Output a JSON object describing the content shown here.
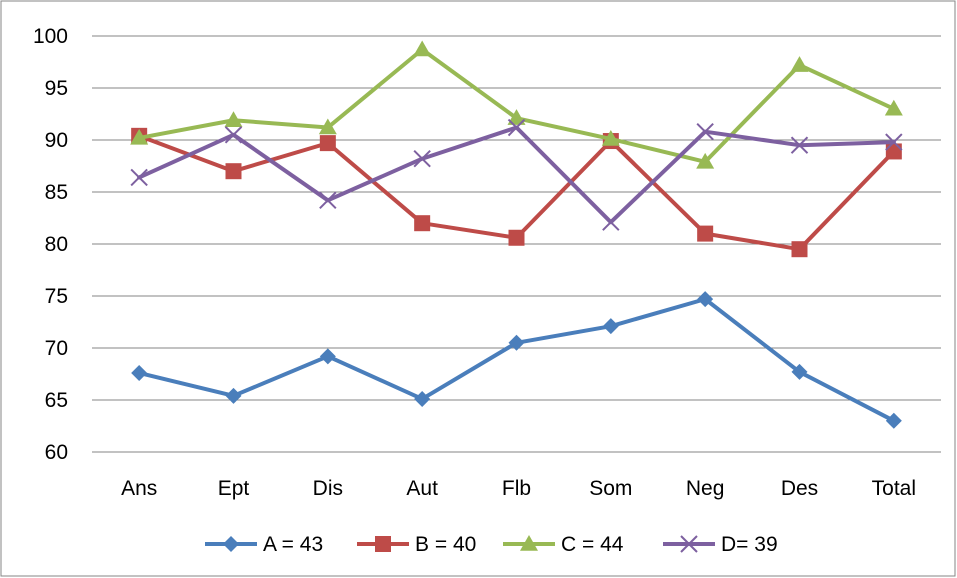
{
  "chart_data": {
    "type": "line",
    "title": "",
    "xlabel": "",
    "ylabel": "",
    "categories": [
      "Ans",
      "Ept",
      "Dis",
      "Aut",
      "Flb",
      "Som",
      "Neg",
      "Des",
      "Total"
    ],
    "ylim": [
      60,
      100
    ],
    "yticks": [
      "60",
      "65",
      "70",
      "75",
      "80",
      "85",
      "90",
      "95",
      "100"
    ],
    "grid": "horizontal",
    "legend_position": "bottom",
    "series": [
      {
        "name": "A = 43",
        "color": "#4a7ebb",
        "marker": "diamond",
        "values": [
          67.6,
          65.4,
          69.2,
          65.1,
          70.5,
          72.1,
          74.7,
          67.7,
          63.0
        ]
      },
      {
        "name": "B = 40",
        "color": "#be4b48",
        "marker": "square",
        "values": [
          90.4,
          87.0,
          89.7,
          82.0,
          80.6,
          89.9,
          81.0,
          79.5,
          88.9
        ]
      },
      {
        "name": "C = 44",
        "color": "#98b954",
        "marker": "triangle",
        "values": [
          90.2,
          91.9,
          91.2,
          98.7,
          92.1,
          90.1,
          87.9,
          97.2,
          93.0
        ]
      },
      {
        "name": "D= 39",
        "color": "#7d60a0",
        "marker": "x",
        "values": [
          86.4,
          90.5,
          84.2,
          88.2,
          91.2,
          82.1,
          90.8,
          89.5,
          89.8
        ]
      }
    ]
  }
}
